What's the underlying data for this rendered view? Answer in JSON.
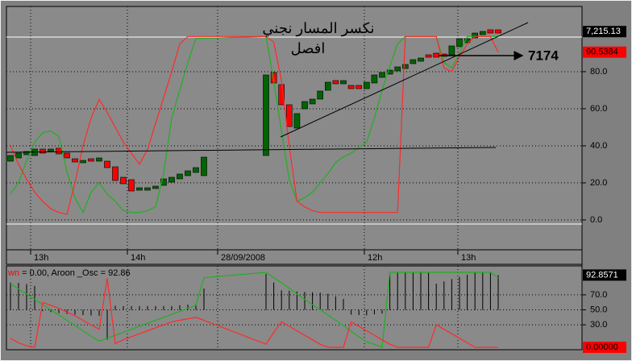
{
  "chart_data": [
    {
      "type": "candlestick",
      "annotations": [
        "نكسر المسار نجني",
        "افصل",
        "7174"
      ],
      "xtick_labels": [
        "13h",
        "14h",
        "28/09/2008",
        "12h",
        "13h"
      ],
      "ylim": [
        -19.6,
        115.2
      ],
      "yticks": [
        {
          "value": 0,
          "label": "0.0"
        },
        {
          "value": 20,
          "label": "20.0"
        },
        {
          "value": 40,
          "label": "40.0"
        },
        {
          "value": 60,
          "label": "60.0"
        },
        {
          "value": 80,
          "label": "80.0"
        }
      ],
      "y2lim": [
        6824.8,
        7258.8
      ],
      "grid": true,
      "up_color": "#006400",
      "down_color": "#ff0000",
      "open": [
        6990,
        6995.6,
        7001.2,
        6999.8,
        7011,
        7006.8,
        7012.4,
        7004,
        6994.2,
        6987.2,
        6994.2,
        6990,
        6990,
        6980.2,
        6962,
        6957.8,
        6939.6,
        6939.6,
        6942.4,
        6948,
        6953.6,
        6959.2,
        6964.8,
        6970.4,
        6964.8,
        6999.8,
        7144,
        7123,
        7088,
        7047.4,
        7081,
        7089.4,
        7097.8,
        7113.2,
        7130,
        7124.4,
        7121.6,
        7121.6,
        7116,
        7125.8,
        7135.6,
        7141.2,
        7146.8,
        7151,
        7159.4,
        7163.6,
        7174.8,
        7177.6,
        7176.2,
        7174.8,
        7188.8,
        7195.8,
        7204.2,
        7209.8,
        7218.2,
        7218.2
      ],
      "close": [
        6999.8,
        7004,
        7006.8,
        7011,
        7004,
        7011,
        7002.6,
        6995.6,
        6988.6,
        6991.4,
        6990,
        6995.6,
        6978.8,
        6956.4,
        6950.8,
        6938.2,
        6943.8,
        6943.8,
        6946.6,
        6959.2,
        6962,
        6967.6,
        6973.2,
        6978.8,
        6997,
        7139.8,
        7125.8,
        7088,
        7050.2,
        7072.6,
        7093.6,
        7097.8,
        7111.8,
        7127.2,
        7124.4,
        7130,
        7116,
        7116,
        7127.2,
        7139.8,
        7144,
        7148.2,
        7153.8,
        7158,
        7166.4,
        7169.2,
        7170.6,
        7170.6,
        7172,
        7190.2,
        7202.8,
        7202.8,
        7212.6,
        7215.4,
        7212.6,
        7212.6
      ],
      "series": [
        {
          "color": "#1fb01f",
          "values": [
            14,
            20,
            32,
            42,
            47,
            48,
            45,
            26,
            12,
            4,
            15,
            20,
            14,
            10,
            5,
            4,
            4,
            5,
            7,
            25,
            55,
            70,
            85,
            98,
            98,
            99,
            75,
            48,
            22,
            10,
            12,
            15,
            20,
            25,
            31,
            34,
            36,
            39,
            42,
            55,
            70,
            83,
            95,
            99,
            99,
            99,
            99,
            99,
            85,
            82,
            90,
            99,
            99,
            99,
            99,
            99
          ]
        },
        {
          "color": "#ff2a2a",
          "values": [
            40,
            30,
            22,
            15,
            10,
            6,
            4,
            3,
            20,
            40,
            55,
            65,
            58,
            50,
            42,
            36,
            30,
            38,
            52,
            66,
            80,
            95,
            99,
            99,
            99,
            99,
            96,
            75,
            40,
            10,
            7,
            5,
            4,
            4,
            4,
            4,
            4,
            4,
            4,
            4,
            4,
            4,
            4,
            99,
            99,
            99,
            99,
            99,
            82,
            80,
            88,
            95,
            99,
            99,
            99,
            90.5384
          ]
        }
      ],
      "last_labels": [
        {
          "value": 7215.13,
          "label": "7,215.13",
          "axis": "y2",
          "color": "#000000"
        },
        {
          "value": 90.5384,
          "color": "#ff0000"
        }
      ]
    },
    {
      "type": "aroon",
      "title": [
        "wn",
        "= 0.00, Aroon _Osc = 92.86"
      ],
      "ylim": [
        -2.2,
        106.5
      ],
      "yticks": [
        {
          "value": 30,
          "label": "30.0"
        },
        {
          "value": 50,
          "label": "50.0"
        },
        {
          "value": 70,
          "label": "70.0"
        }
      ],
      "y2lim": [
        -104.4,
        113
      ],
      "grid": true,
      "series": [
        {
          "color": "#1fb01f",
          "values": [
            85,
            78,
            71,
            64,
            57,
            50,
            43,
            36,
            29,
            22,
            15,
            8,
            12,
            16,
            20,
            24,
            28,
            32,
            36,
            40,
            44,
            48,
            52,
            56,
            93,
            100,
            93,
            86,
            79,
            71,
            64,
            57,
            50,
            43,
            36,
            29,
            21,
            14,
            7,
            4,
            0,
            100,
            100,
            100,
            100,
            100,
            100,
            100,
            100,
            100,
            100,
            100,
            100,
            100,
            100,
            92.86
          ]
        },
        {
          "color": "#ff2a2a",
          "values": [
            12,
            6,
            2,
            0,
            60,
            56,
            52,
            47,
            42,
            36,
            30,
            24,
            92,
            5,
            10,
            14,
            18,
            22,
            26,
            30,
            34,
            36,
            38,
            40,
            36,
            4,
            20,
            34,
            28,
            22,
            16,
            10,
            4,
            0,
            0,
            0,
            34,
            28,
            22,
            16,
            10,
            4,
            0,
            0,
            0,
            0,
            0,
            30,
            24,
            18,
            12,
            6,
            0,
            0,
            0,
            0
          ]
        },
        {
          "color": "#000000",
          "axis": "y2",
          "values": [
            73,
            72,
            69,
            64,
            -3,
            -6,
            -9,
            -11,
            -13,
            -14,
            -15,
            -16,
            -80,
            11,
            10,
            10,
            10,
            10,
            10,
            10,
            10,
            12,
            14,
            16,
            57,
            96,
            73,
            52,
            51,
            49,
            48,
            47,
            46,
            43,
            36,
            29,
            -13,
            -14,
            -15,
            -12,
            -10,
            96,
            100,
            100,
            100,
            100,
            100,
            70,
            76,
            82,
            88,
            94,
            100,
            100,
            100,
            92.86
          ]
        }
      ],
      "last_labels": [
        {
          "value": 92.8571,
          "axis": "y2",
          "color": "#000000"
        },
        {
          "value": 0,
          "label": "0.00000",
          "color": "#ff0000"
        }
      ]
    }
  ]
}
